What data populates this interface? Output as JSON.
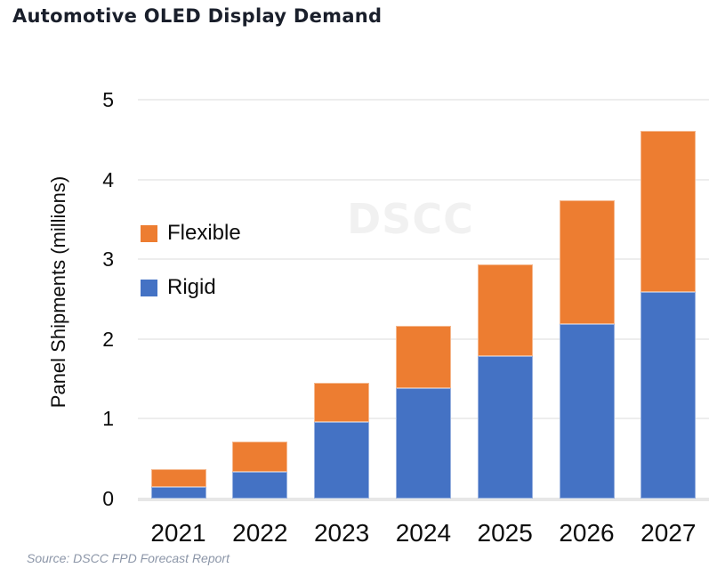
{
  "title": "Automotive OLED Display Demand",
  "watermark": {
    "text": "DSCC"
  },
  "source": "Source: DSCC FPD Forecast Report",
  "legend": {
    "items": [
      {
        "label": "Flexible",
        "color": "#ED7D31"
      },
      {
        "label": "Rigid",
        "color": "#4472C4"
      }
    ]
  },
  "chart_data": {
    "type": "bar",
    "stacked": true,
    "title": "Automotive OLED Display Demand",
    "xlabel": "",
    "ylabel": "Panel Shipments (millions)",
    "ylim": [
      0,
      5
    ],
    "yticks": [
      0,
      1,
      2,
      3,
      4,
      5
    ],
    "grid": true,
    "legend_position": "inside upper-left",
    "categories": [
      "2021",
      "2022",
      "2023",
      "2024",
      "2025",
      "2026",
      "2027"
    ],
    "series": [
      {
        "name": "Rigid",
        "color": "#4472C4",
        "values": [
          0.15,
          0.34,
          0.96,
          1.38,
          1.79,
          2.19,
          2.59
        ]
      },
      {
        "name": "Flexible",
        "color": "#ED7D31",
        "values": [
          0.22,
          0.37,
          0.49,
          0.78,
          1.14,
          1.55,
          2.02
        ]
      }
    ],
    "stack_totals": [
      0.37,
      0.71,
      1.45,
      2.16,
      2.93,
      3.74,
      4.61
    ]
  }
}
